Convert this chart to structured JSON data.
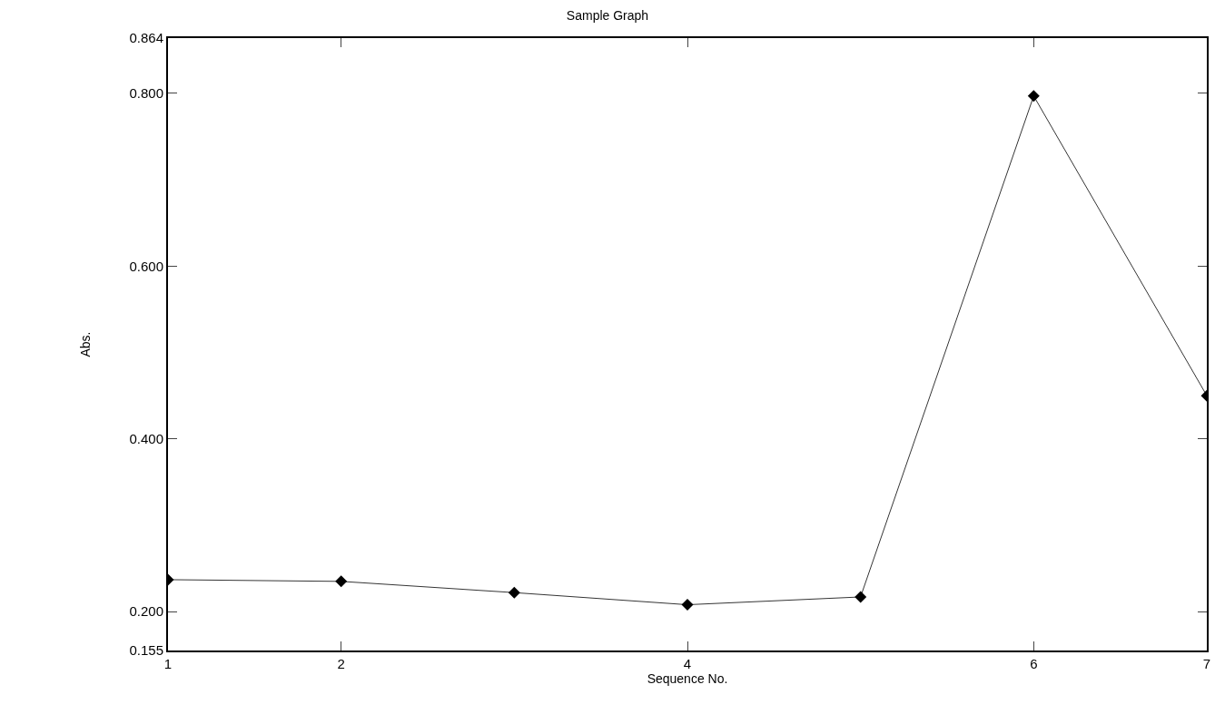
{
  "chart_data": {
    "type": "line",
    "title": "Sample Graph",
    "xlabel": "Sequence No.",
    "ylabel": "Abs.",
    "x": [
      1,
      2,
      3,
      4,
      5,
      6,
      7
    ],
    "series": [
      {
        "color": "#000000",
        "values": [
          0.237,
          0.235,
          0.222,
          0.208,
          0.217,
          0.797,
          0.45
        ]
      }
    ],
    "xlim": [
      1,
      7
    ],
    "xticks": [
      1,
      2,
      4,
      6,
      7
    ],
    "ylim": [
      0.155,
      0.864
    ],
    "yticks": [
      0.155,
      {
        "value": 0.2,
        "label": "0.200"
      },
      {
        "value": 0.4,
        "label": "0.400"
      },
      {
        "value": 0.6,
        "label": "0.600"
      },
      {
        "value": 0.8,
        "label": "0.800"
      },
      0.864
    ],
    "marker": "diamond",
    "line_style": "solid"
  }
}
